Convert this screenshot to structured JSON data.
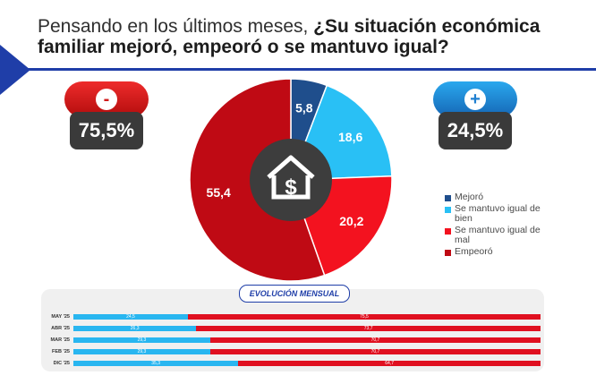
{
  "title": {
    "prefix": "Pensando en los últimos meses, ",
    "bold": "¿Su situación económica familiar mejoró, empeoró o se mantuvo igual?"
  },
  "badges": {
    "negative": {
      "symbol": "-",
      "value": "75,5%",
      "icon": "minus-icon"
    },
    "positive": {
      "symbol": "+",
      "value": "24,5%",
      "icon": "plus-icon"
    }
  },
  "center_icon": "house-dollar-icon",
  "colors": {
    "mejoro": "#1f4e8c",
    "igual_bien": "#29c0f5",
    "igual_mal": "#f3121f",
    "empeoro": "#bf0a14",
    "brand_blue": "#1f3ea8"
  },
  "chart_data": [
    {
      "type": "pie",
      "categories": [
        "Mejoró",
        "Se mantuvo igual de bien",
        "Se mantuvo igual de mal",
        "Empeoró"
      ],
      "values": [
        5.8,
        18.6,
        20.2,
        55.4
      ],
      "value_labels": [
        "5,8",
        "18,6",
        "20,2",
        "55,4"
      ],
      "colors": [
        "#1f4e8c",
        "#29c0f5",
        "#f3121f",
        "#bf0a14"
      ],
      "legend_position": "right"
    },
    {
      "type": "bar",
      "orientation": "horizontal-stacked",
      "title": "EVOLUCIÓN MENSUAL",
      "categories": [
        "MAY '25",
        "ABR '25",
        "MAR '25",
        "FEB '25",
        "DIC '25"
      ],
      "series": [
        {
          "values": [
            24.5,
            26.3,
            29.3,
            29.3,
            35.3
          ],
          "labels": [
            "24,5",
            "26,3",
            "29,3",
            "29,3",
            "35,3"
          ],
          "color": "#29b6f0"
        },
        {
          "values": [
            75.5,
            73.7,
            70.7,
            70.7,
            64.7
          ],
          "labels": [
            "75,5",
            "73,7",
            "70,7",
            "70,7",
            "64,7"
          ],
          "color": "#e01020"
        }
      ]
    }
  ]
}
